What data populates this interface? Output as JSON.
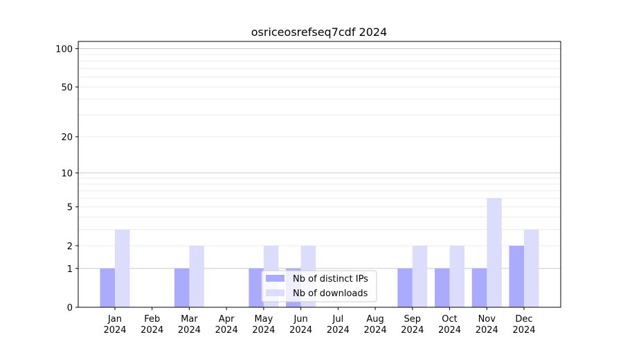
{
  "chart_data": {
    "type": "bar",
    "title": "osriceosrefseq7cdf 2024",
    "xlabel": "",
    "ylabel": "",
    "yscale": "symlog",
    "ylim": [
      0,
      114
    ],
    "yticks": [
      0,
      1,
      2,
      5,
      10,
      20,
      50,
      100
    ],
    "grid": true,
    "legend_position": "lower-center",
    "categories": [
      [
        "Jan",
        "2024"
      ],
      [
        "Feb",
        "2024"
      ],
      [
        "Mar",
        "2024"
      ],
      [
        "Apr",
        "2024"
      ],
      [
        "May",
        "2024"
      ],
      [
        "Jun",
        "2024"
      ],
      [
        "Jul",
        "2024"
      ],
      [
        "Aug",
        "2024"
      ],
      [
        "Sep",
        "2024"
      ],
      [
        "Oct",
        "2024"
      ],
      [
        "Nov",
        "2024"
      ],
      [
        "Dec",
        "2024"
      ]
    ],
    "series": [
      {
        "name": "Nb of distinct IPs",
        "color": "#aaaaff",
        "values": [
          1,
          0,
          1,
          0,
          1,
          1,
          0,
          0,
          1,
          1,
          1,
          2
        ]
      },
      {
        "name": "Nb of downloads",
        "color": "#dcdcfc",
        "values": [
          3,
          0,
          2,
          0,
          2,
          2,
          0,
          0,
          2,
          2,
          6,
          3
        ]
      }
    ]
  }
}
